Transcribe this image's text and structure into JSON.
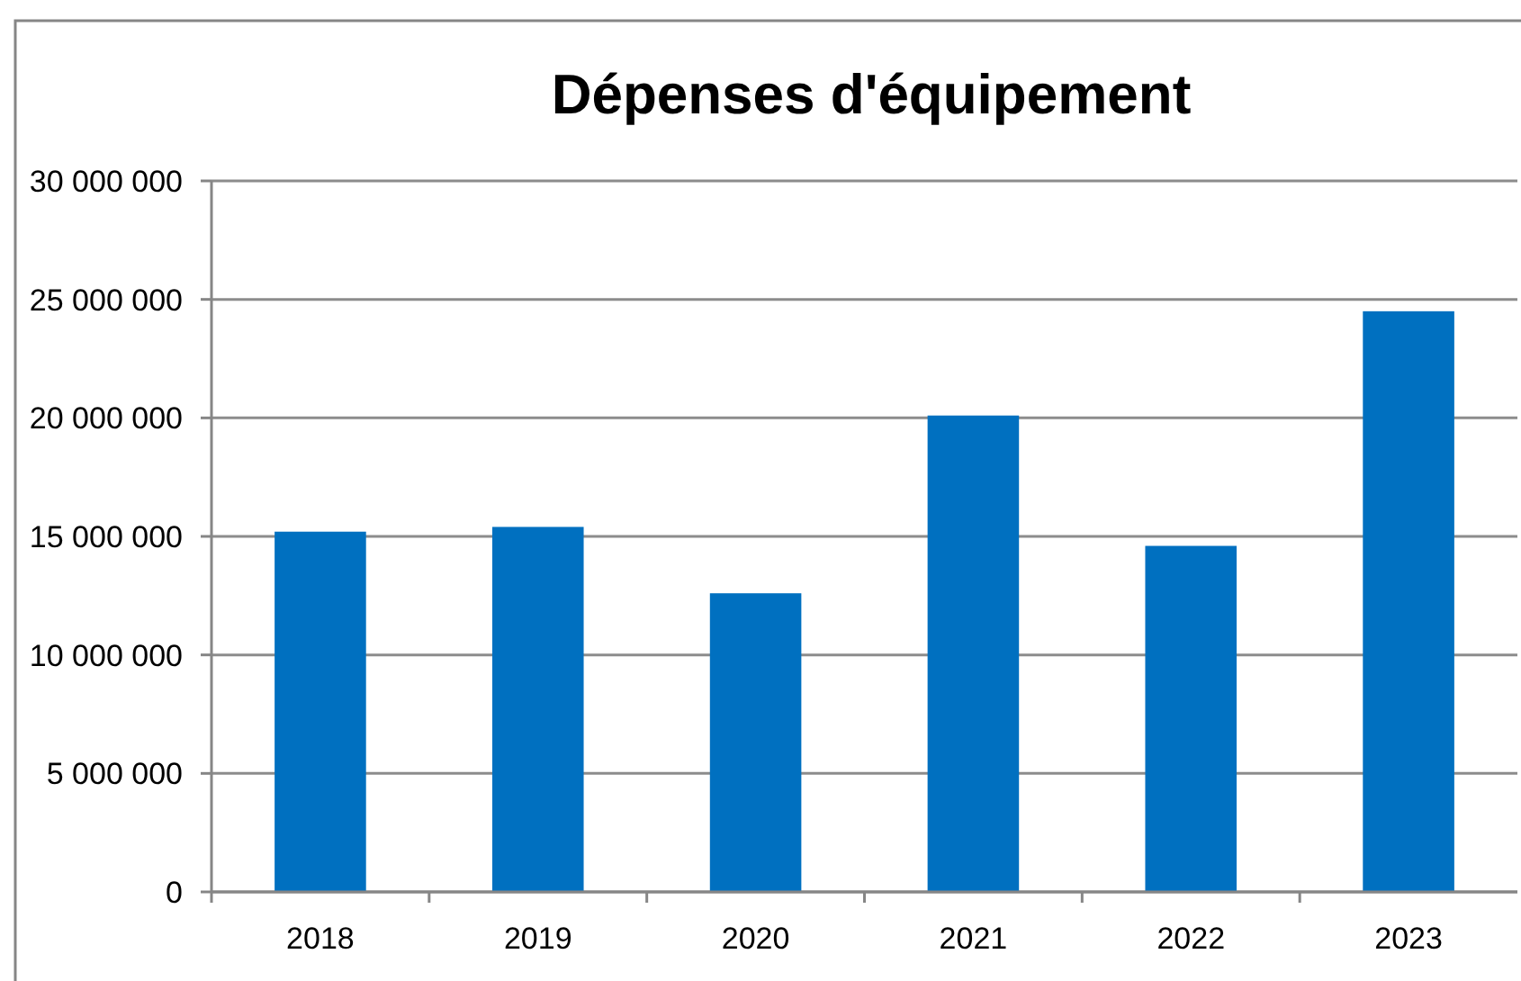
{
  "chart_data": {
    "type": "bar",
    "title": "Dépenses d'équipement",
    "categories": [
      "2018",
      "2019",
      "2020",
      "2021",
      "2022",
      "2023"
    ],
    "values": [
      15200000,
      15400000,
      12600000,
      20100000,
      14600000,
      24500000
    ],
    "color": "#0070c0",
    "ylim": [
      0,
      30000000
    ],
    "yticks": [
      0,
      {
        "value": 5000000,
        "label": "5 000 000"
      },
      {
        "value": 10000000,
        "label": "10 000 000"
      },
      {
        "value": 15000000,
        "label": "15 000 000"
      },
      {
        "value": 20000000,
        "label": "20 000 000"
      },
      {
        "value": 25000000,
        "label": "25 000 000"
      },
      {
        "value": 30000000,
        "label": "30 000 000"
      }
    ],
    "grid": "y"
  }
}
